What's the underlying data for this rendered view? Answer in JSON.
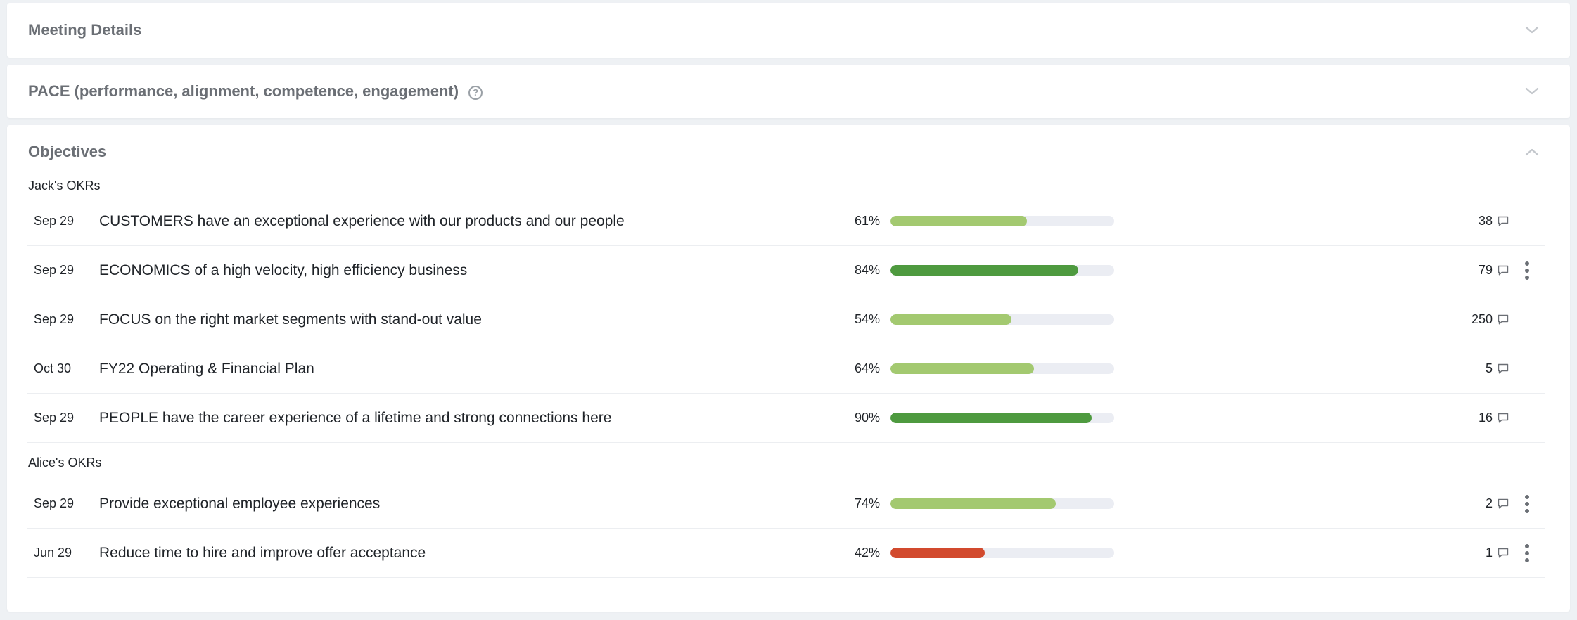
{
  "panels": {
    "meeting_details": {
      "title": "Meeting Details"
    },
    "pace": {
      "title": "PACE (performance, alignment, competence, engagement)",
      "help_glyph": "?"
    },
    "objectives": {
      "title": "Objectives"
    }
  },
  "groups": [
    {
      "heading": "Jack's OKRs",
      "items": [
        {
          "date": "Sep 29",
          "title": "CUSTOMERS have an exceptional experience with our products and our people",
          "percent_label": "61%",
          "progress": 61,
          "color": "#a3c970",
          "comments": "38",
          "menu": false
        },
        {
          "date": "Sep 29",
          "title": "ECONOMICS of a high velocity, high efficiency business",
          "percent_label": "84%",
          "progress": 84,
          "color": "#4e9a3f",
          "comments": "79",
          "menu": true
        },
        {
          "date": "Sep 29",
          "title": "FOCUS on the right market segments with stand-out value",
          "percent_label": "54%",
          "progress": 54,
          "color": "#a3c970",
          "comments": "250",
          "menu": false
        },
        {
          "date": "Oct 30",
          "title": "FY22 Operating & Financial Plan",
          "percent_label": "64%",
          "progress": 64,
          "color": "#a3c970",
          "comments": "5",
          "menu": false
        },
        {
          "date": "Sep 29",
          "title": "PEOPLE have the career experience of a lifetime and strong connections here",
          "percent_label": "90%",
          "progress": 90,
          "color": "#4e9a3f",
          "comments": "16",
          "menu": false
        }
      ]
    },
    {
      "heading": "Alice's OKRs",
      "items": [
        {
          "date": "Sep 29",
          "title": "Provide exceptional employee experiences",
          "percent_label": "74%",
          "progress": 74,
          "color": "#a3c970",
          "comments": "2",
          "menu": true
        },
        {
          "date": "Jun 29",
          "title": "Reduce time to hire and improve offer acceptance",
          "percent_label": "42%",
          "progress": 42,
          "color": "#d24a2e",
          "comments": "1",
          "menu": true
        }
      ]
    }
  ],
  "colors": {
    "track": "#ebedf3",
    "on_track_light": "#a3c970",
    "on_track_dark": "#4e9a3f",
    "at_risk": "#d24a2e"
  },
  "icons": {
    "collapse": "chevron-down-icon",
    "expand": "chevron-up-icon",
    "comment": "comment-bubble-icon",
    "menu": "kebab-menu-icon",
    "help": "help-circle-icon"
  }
}
